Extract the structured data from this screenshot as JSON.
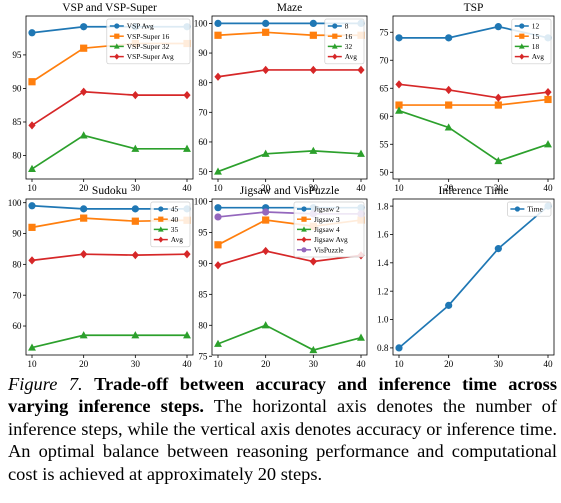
{
  "chart_data": [
    {
      "type": "line",
      "title": "VSP and VSP-Super",
      "x": [
        10,
        20,
        30,
        40
      ],
      "xlim": [
        10,
        40
      ],
      "ylim": [
        76.5,
        100.8
      ],
      "yticks": [
        80,
        85,
        90,
        95
      ],
      "legend": "top-right",
      "series": [
        {
          "name": "VSP Avg",
          "values": [
            98.3,
            99.2,
            99.2,
            99.2
          ],
          "color": "#1f77b4"
        },
        {
          "name": "VSP-Super 16",
          "values": [
            91.0,
            96.0,
            96.7,
            96.7
          ],
          "color": "#ff7f0e"
        },
        {
          "name": "VSP-Super 32",
          "values": [
            78.0,
            83.0,
            81.0,
            81.0
          ],
          "color": "#2ca02c"
        },
        {
          "name": "VSP-Super Avg",
          "values": [
            84.5,
            89.5,
            89.0,
            89.0
          ],
          "color": "#d62728"
        }
      ]
    },
    {
      "type": "line",
      "title": "Maze",
      "x": [
        10,
        20,
        30,
        40
      ],
      "xlim": [
        10,
        40
      ],
      "ylim": [
        47.5,
        102.5
      ],
      "yticks": [
        50,
        60,
        70,
        80,
        90,
        100
      ],
      "legend": "top-right",
      "series": [
        {
          "name": "8",
          "values": [
            100,
            100,
            100,
            100
          ],
          "color": "#1f77b4"
        },
        {
          "name": "16",
          "values": [
            96,
            97,
            96,
            96
          ],
          "color": "#ff7f0e"
        },
        {
          "name": "32",
          "values": [
            50,
            56,
            57,
            56
          ],
          "color": "#2ca02c"
        },
        {
          "name": "Avg",
          "values": [
            82,
            84.3,
            84.3,
            84.3
          ],
          "color": "#d62728"
        }
      ]
    },
    {
      "type": "line",
      "title": "TSP",
      "x": [
        10,
        20,
        30,
        40
      ],
      "xlim": [
        10,
        40
      ],
      "ylim": [
        48.8,
        77.9
      ],
      "yticks": [
        50,
        55,
        60,
        65,
        70,
        75
      ],
      "legend": "top-right",
      "series": [
        {
          "name": "12",
          "values": [
            74,
            74,
            76,
            74
          ],
          "color": "#1f77b4"
        },
        {
          "name": "15",
          "values": [
            62,
            62,
            62,
            63
          ],
          "color": "#ff7f0e"
        },
        {
          "name": "18",
          "values": [
            61,
            58,
            52,
            55
          ],
          "color": "#2ca02c"
        },
        {
          "name": "Avg",
          "values": [
            65.7,
            64.7,
            63.3,
            64.3
          ],
          "color": "#d62728"
        }
      ]
    },
    {
      "type": "line",
      "title": "Sudoku",
      "x": [
        10,
        20,
        30,
        40
      ],
      "xlim": [
        10,
        40
      ],
      "ylim": [
        50.6,
        101.2
      ],
      "yticks": [
        60,
        70,
        80,
        90,
        100
      ],
      "legend": "top-right",
      "series": [
        {
          "name": "45",
          "values": [
            99,
            98,
            98,
            98
          ],
          "color": "#1f77b4"
        },
        {
          "name": "40",
          "values": [
            92,
            95,
            94,
            94.3
          ],
          "color": "#ff7f0e"
        },
        {
          "name": "35",
          "values": [
            53,
            57,
            57,
            57
          ],
          "color": "#2ca02c"
        },
        {
          "name": "Avg",
          "values": [
            81.3,
            83.3,
            83,
            83.3
          ],
          "color": "#d62728"
        }
      ]
    },
    {
      "type": "line",
      "title": "Jigsaw and VisPuzzle",
      "x": [
        10,
        20,
        30,
        40
      ],
      "xlim": [
        10,
        40
      ],
      "ylim": [
        75.2,
        100.4
      ],
      "yticks": [
        75,
        80,
        85,
        90,
        95,
        100
      ],
      "legend": "top-right",
      "series": [
        {
          "name": "Jigsaw 2",
          "values": [
            99,
            99,
            99,
            99
          ],
          "color": "#1f77b4"
        },
        {
          "name": "Jigsaw 3",
          "values": [
            93,
            97,
            96,
            97
          ],
          "color": "#ff7f0e"
        },
        {
          "name": "Jigsaw 4",
          "values": [
            77,
            80,
            76,
            78
          ],
          "color": "#2ca02c"
        },
        {
          "name": "Jigsaw Avg",
          "values": [
            89.7,
            92,
            90.3,
            91.3
          ],
          "color": "#d62728"
        },
        {
          "name": "VisPuzzle",
          "values": [
            97.5,
            98.3,
            98,
            98
          ],
          "color": "#9467bd"
        }
      ]
    },
    {
      "type": "line",
      "title": "Inference Time",
      "x": [
        10,
        20,
        30,
        40
      ],
      "xlim": [
        10,
        40
      ],
      "ylim": [
        0.75,
        1.85
      ],
      "yticks": [
        0.8,
        1.0,
        1.2,
        1.4,
        1.6,
        1.8
      ],
      "legend": "top-right",
      "series": [
        {
          "name": "Time",
          "values": [
            0.8,
            1.1,
            1.5,
            1.8
          ],
          "color": "#1f77b4"
        }
      ]
    }
  ],
  "caption": {
    "figure_label": "Figure 7.",
    "bold_text": "Trade-off between accuracy and inference time across varying inference steps.",
    "body_text": "The horizontal axis denotes the number of inference steps, while the vertical axis denotes accuracy or inference time. An optimal balance between reasoning performance and computational cost is achieved at approximately 20 steps."
  }
}
